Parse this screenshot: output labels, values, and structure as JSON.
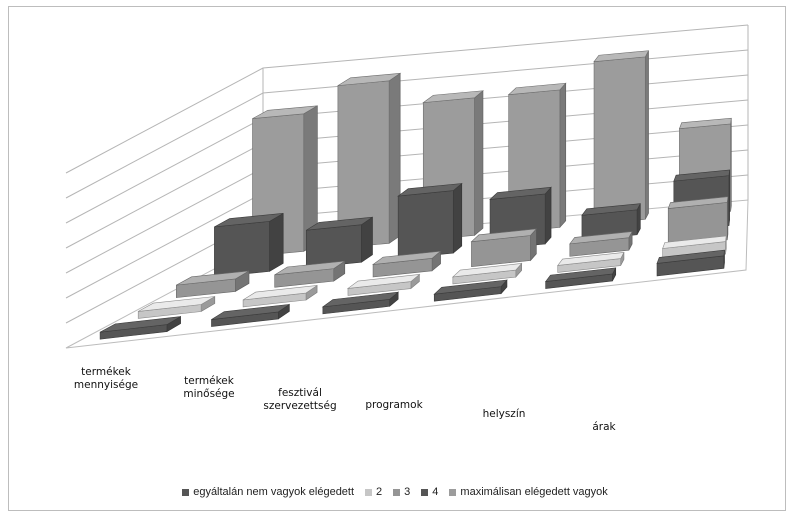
{
  "chart_data": {
    "type": "bar",
    "subtype": "3d-bar",
    "title": "",
    "xlabel": "",
    "ylabel": "",
    "categories": [
      [
        "termékek",
        "mennyisége"
      ],
      [
        "termékek",
        "minősége"
      ],
      [
        "fesztivál",
        "szervezettség"
      ],
      [
        "programok"
      ],
      [
        "helyszín"
      ],
      [
        "árak"
      ]
    ],
    "series": [
      {
        "name": "egyáltalán nem vagyok elégedett",
        "color": "#555555",
        "values": [
          0,
          0,
          0,
          0,
          0,
          1
        ]
      },
      {
        "name": "2",
        "color": "#c6c6c6",
        "values": [
          0,
          0,
          0,
          0,
          0,
          1
        ]
      },
      {
        "name": "3",
        "color": "#959595",
        "values": [
          1,
          1,
          1,
          2,
          1,
          3
        ]
      },
      {
        "name": "4",
        "color": "#555555",
        "values": [
          4,
          3,
          5,
          4,
          2,
          4
        ]
      },
      {
        "name": "maximálisan elégedett vagyok",
        "color": "#9c9c9c",
        "values": [
          11,
          13,
          11,
          11,
          13,
          7
        ]
      }
    ],
    "ylim": [
      0,
      14
    ],
    "grid": true,
    "legend_position": "bottom"
  }
}
